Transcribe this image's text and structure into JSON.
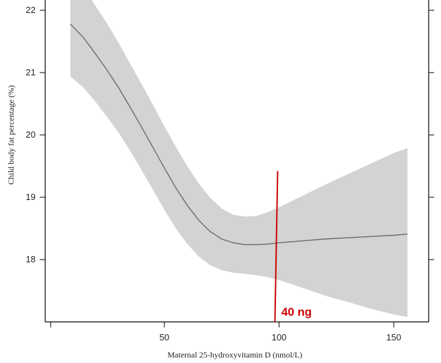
{
  "chart_data": {
    "type": "line",
    "xlabel": "Maternal 25-hydroxyvitamin D (nmol/L)",
    "ylabel": "Child body fat percentage (%)",
    "xlim": [
      5,
      165
    ],
    "ylim": [
      17.0,
      22.1
    ],
    "x_ticks": [
      50,
      100,
      150
    ],
    "y_ticks": [
      18,
      19,
      20,
      21,
      22
    ],
    "grid": false,
    "series": [
      {
        "x": [
          9,
          15,
          20,
          25,
          30,
          35,
          40,
          45,
          50,
          55,
          60,
          65,
          70,
          75,
          80,
          85,
          90,
          95,
          100,
          110,
          120,
          130,
          140,
          150,
          156
        ],
        "y": [
          21.78,
          21.55,
          21.3,
          21.04,
          20.76,
          20.45,
          20.13,
          19.8,
          19.47,
          19.15,
          18.87,
          18.63,
          18.45,
          18.33,
          18.27,
          18.24,
          18.24,
          18.25,
          18.27,
          18.3,
          18.33,
          18.35,
          18.37,
          18.39,
          18.41
        ],
        "lower": [
          20.94,
          20.75,
          20.53,
          20.29,
          20.04,
          19.75,
          19.44,
          19.12,
          18.8,
          18.5,
          18.25,
          18.05,
          17.91,
          17.83,
          17.79,
          17.77,
          17.75,
          17.72,
          17.67,
          17.55,
          17.42,
          17.32,
          17.21,
          17.12,
          17.08
        ],
        "upper": [
          22.62,
          22.35,
          22.07,
          21.79,
          21.48,
          21.15,
          20.82,
          20.48,
          20.14,
          19.81,
          19.5,
          19.22,
          18.99,
          18.82,
          18.72,
          18.69,
          18.7,
          18.76,
          18.84,
          19.02,
          19.2,
          19.37,
          19.54,
          19.71,
          19.79
        ]
      }
    ],
    "annotations": [
      {
        "type": "vline",
        "x": 98.5,
        "y_from": 17.0,
        "y_to": 19.42,
        "color": "#cc0000",
        "label": "40 ng",
        "label_x": 101,
        "label_y": 17.2
      }
    ]
  }
}
